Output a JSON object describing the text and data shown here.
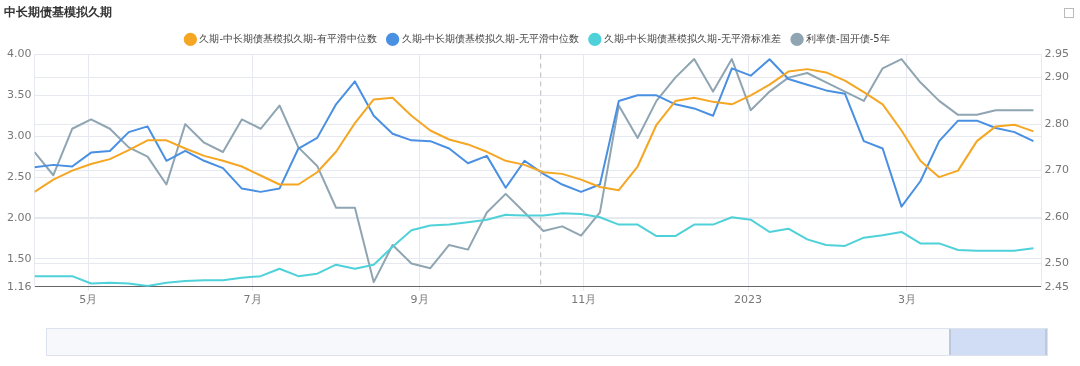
{
  "chart_data": {
    "type": "line",
    "title": "中长期债基模拟久期",
    "x": [
      "2022-04-11",
      "2022-04-18",
      "2022-04-25",
      "2022-05-02",
      "2022-05-09",
      "2022-05-16",
      "2022-05-23",
      "2022-05-30",
      "2022-06-06",
      "2022-06-13",
      "2022-06-20",
      "2022-06-27",
      "2022-07-04",
      "2022-07-11",
      "2022-07-18",
      "2022-07-25",
      "2022-08-01",
      "2022-08-08",
      "2022-08-15",
      "2022-08-22",
      "2022-08-29",
      "2022-09-05",
      "2022-09-12",
      "2022-09-19",
      "2022-09-26",
      "2022-10-03",
      "2022-10-10",
      "2022-10-17",
      "2022-10-24",
      "2022-10-31",
      "2022-11-07",
      "2022-11-14",
      "2022-11-21",
      "2022-11-28",
      "2022-12-05",
      "2022-12-12",
      "2022-12-19",
      "2022-12-26",
      "2023-01-02",
      "2023-01-09",
      "2023-01-16",
      "2023-01-23",
      "2023-01-30",
      "2023-02-06",
      "2023-02-13",
      "2023-02-20",
      "2023-02-27",
      "2023-03-06",
      "2023-03-13",
      "2023-03-20",
      "2023-03-27",
      "2023-04-03",
      "2023-04-10",
      "2023-04-17"
    ],
    "series": [
      {
        "name": "久期-中长期债基模拟久期-有平滑中位数",
        "color": "#f5a623",
        "values": [
          2.32,
          2.47,
          2.58,
          2.66,
          2.72,
          2.83,
          2.95,
          2.95,
          2.85,
          2.76,
          2.7,
          2.63,
          2.52,
          2.41,
          2.41,
          2.56,
          2.81,
          3.16,
          3.45,
          3.47,
          3.25,
          3.07,
          2.96,
          2.9,
          2.81,
          2.7,
          2.65,
          2.56,
          2.54,
          2.47,
          2.38,
          2.34,
          2.63,
          3.14,
          3.43,
          3.47,
          3.42,
          3.39,
          3.5,
          3.63,
          3.79,
          3.82,
          3.78,
          3.68,
          3.54,
          3.39,
          3.07,
          2.7,
          2.5,
          2.58,
          2.94,
          3.12,
          3.14,
          3.06
        ]
      },
      {
        "name": "久期-中长期债基模拟久期-无平滑中位数",
        "color": "#4a90e2",
        "values": [
          2.62,
          2.65,
          2.63,
          2.8,
          2.82,
          3.05,
          3.12,
          2.7,
          2.82,
          2.7,
          2.61,
          2.36,
          2.32,
          2.36,
          2.85,
          2.98,
          3.39,
          3.67,
          3.25,
          3.03,
          2.95,
          2.94,
          2.85,
          2.67,
          2.76,
          2.37,
          2.7,
          2.54,
          2.41,
          2.32,
          2.41,
          3.43,
          3.5,
          3.5,
          3.39,
          3.34,
          3.25,
          3.83,
          3.74,
          3.94,
          3.7,
          3.63,
          3.56,
          3.52,
          2.94,
          2.85,
          2.14,
          2.45,
          2.94,
          3.19,
          3.19,
          3.1,
          3.05,
          2.94
        ]
      },
      {
        "name": "久期-中长期债基模拟久期-无平滑标准差",
        "color": "#4fd1d9",
        "values": [
          1.29,
          1.29,
          1.29,
          1.2,
          1.21,
          1.2,
          1.17,
          1.21,
          1.23,
          1.24,
          1.24,
          1.27,
          1.29,
          1.38,
          1.29,
          1.32,
          1.43,
          1.38,
          1.43,
          1.65,
          1.85,
          1.91,
          1.92,
          1.95,
          1.98,
          2.04,
          2.03,
          2.03,
          2.06,
          2.05,
          2.01,
          1.92,
          1.92,
          1.78,
          1.78,
          1.92,
          1.92,
          2.01,
          1.98,
          1.83,
          1.87,
          1.74,
          1.67,
          1.66,
          1.76,
          1.79,
          1.83,
          1.69,
          1.69,
          1.61,
          1.6,
          1.6,
          1.6,
          1.63
        ]
      },
      {
        "name": "利率债-国开债-5年",
        "color": "#8fa5b2",
        "axis": "y2",
        "values": [
          2.74,
          2.69,
          2.79,
          2.81,
          2.79,
          2.75,
          2.73,
          2.67,
          2.8,
          2.76,
          2.74,
          2.81,
          2.79,
          2.84,
          2.75,
          2.71,
          2.62,
          2.62,
          2.46,
          2.54,
          2.5,
          2.49,
          2.54,
          2.53,
          2.61,
          2.65,
          2.61,
          2.57,
          2.58,
          2.56,
          2.61,
          2.84,
          2.77,
          2.85,
          2.9,
          2.94,
          2.87,
          2.94,
          2.83,
          2.87,
          2.9,
          2.91,
          2.89,
          2.87,
          2.85,
          2.92,
          2.94,
          2.89,
          2.85,
          2.82,
          2.82,
          2.83,
          2.83,
          2.83
        ]
      }
    ],
    "xlim": [
      "2022-04-11",
      "2023-04-20"
    ],
    "xticks": [
      {
        "value": "2022-05-01",
        "label": "5月"
      },
      {
        "value": "2022-07-01",
        "label": "7月"
      },
      {
        "value": "2022-09-01",
        "label": "9月"
      },
      {
        "value": "2022-11-01",
        "label": "11月"
      },
      {
        "value": "2023-01-01",
        "label": "2023"
      },
      {
        "value": "2023-03-01",
        "label": "3月"
      }
    ],
    "ylim": [
      1.16,
      4.0
    ],
    "yticks": [
      {
        "value": 1.16,
        "label": "1.16"
      },
      {
        "value": 1.5,
        "label": "1.50"
      },
      {
        "value": 2,
        "label": "2.00"
      },
      {
        "value": 2.5,
        "label": "2.50"
      },
      {
        "value": 3,
        "label": "3.00"
      },
      {
        "value": 3.5,
        "label": "3.50"
      },
      {
        "value": 4,
        "label": "4.00"
      }
    ],
    "y2lim": [
      2.45,
      2.95
    ],
    "y2ticks": [
      {
        "value": 2.45,
        "label": "2.45"
      },
      {
        "value": 2.5,
        "label": "2.50"
      },
      {
        "value": 2.6,
        "label": "2.60"
      },
      {
        "value": 2.7,
        "label": "2.70"
      },
      {
        "value": 2.8,
        "label": "2.80"
      },
      {
        "value": 2.9,
        "label": "2.90"
      },
      {
        "value": 2.95,
        "label": "2.95"
      }
    ],
    "ref_lines": [
      {
        "axis": "x",
        "value": "2022-10-16",
        "color": "#bbbbbb",
        "line_style": "dashed"
      }
    ],
    "grid": true,
    "legend": "top",
    "marker": "none",
    "line_style": "solid"
  }
}
